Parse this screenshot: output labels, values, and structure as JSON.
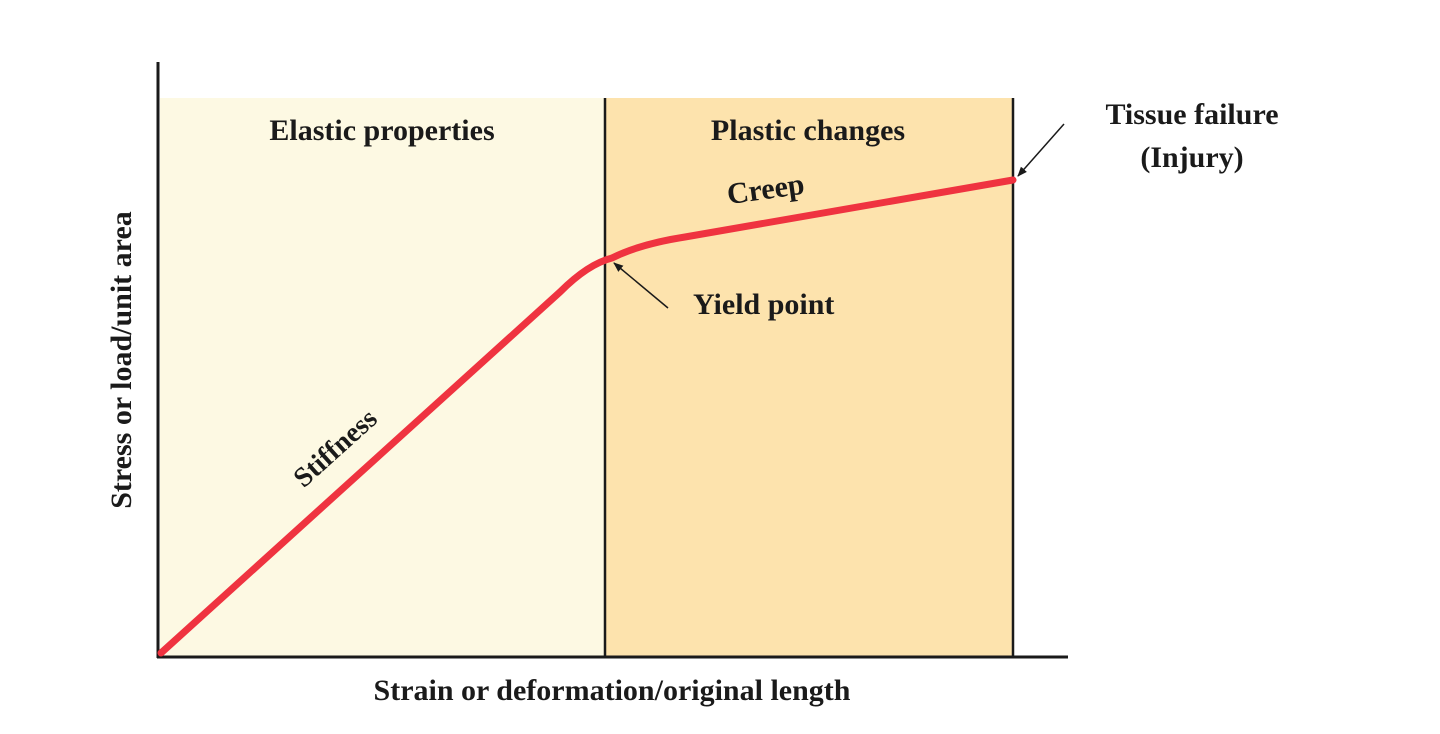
{
  "regions": {
    "elastic": "Elastic properties",
    "plastic": "Plastic changes"
  },
  "annotations": {
    "failure": "Tissue failure",
    "failure_note": "(Injury)",
    "creep": "Creep",
    "yield": "Yield point",
    "stiffness": "Stiffness"
  },
  "axes": {
    "y_label": "Stress or load/unit area",
    "x_label": "Strain or deformation/original length"
  }
}
